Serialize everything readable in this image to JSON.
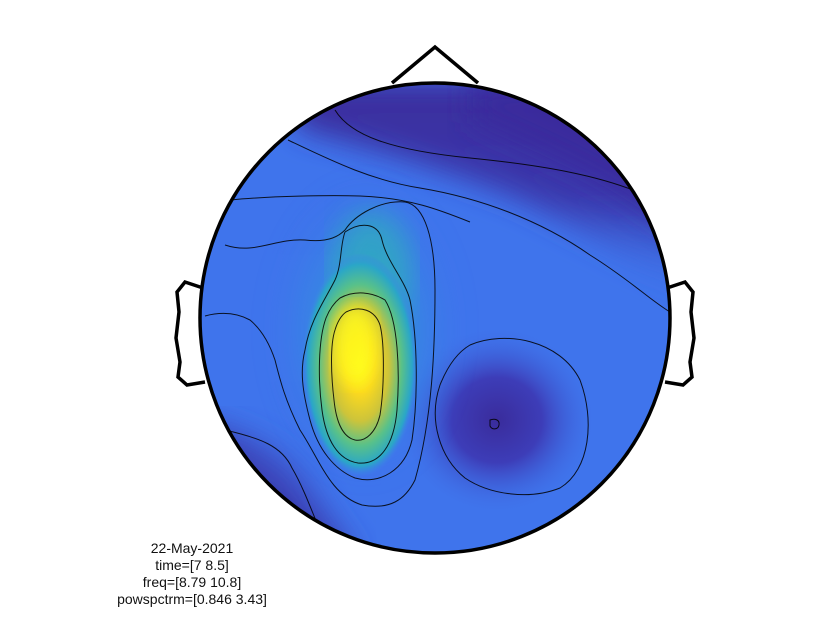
{
  "figure": {
    "type": "topoplot",
    "colormap": "parula",
    "colors": {
      "low": "#3a2c9c",
      "base": "#3f74ec",
      "mid": "#2fb8b4",
      "high": "#fbd91f",
      "peak": "#fdfd12",
      "outline": "#000000",
      "contour": "#000000"
    }
  },
  "annotation": {
    "date": "22-May-2021",
    "time": "time=[7 8.5]",
    "freq": "freq=[8.79 10.8]",
    "powspctrm": "powspctrm=[0.846 3.43]"
  }
}
